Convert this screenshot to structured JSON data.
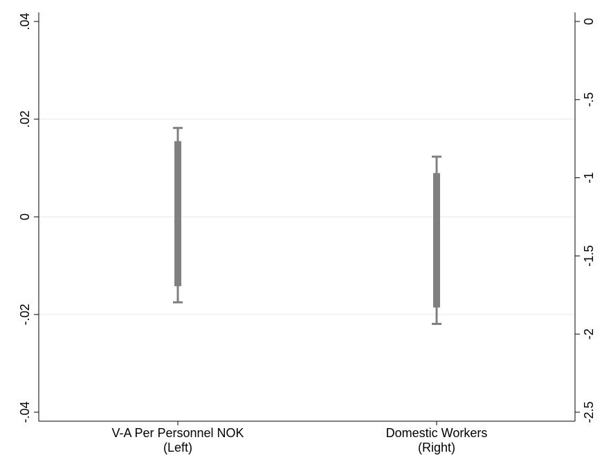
{
  "chart_data": {
    "type": "interval",
    "grid": true,
    "grid_color": "#eaf2f3",
    "series_color": "#808080",
    "axis_color": "#000000",
    "categories": [
      {
        "label_line1": "V-A Per Personnel NOK",
        "label_line2": "(Left)",
        "axis": "left"
      },
      {
        "label_line1": "Domestic Workers",
        "label_line2": "(Right)",
        "axis": "right"
      }
    ],
    "left_axis": {
      "ylim": [
        -0.042,
        0.041
      ],
      "ticks": [
        0.04,
        0.02,
        0,
        -0.02,
        -0.04
      ],
      "tick_labels": [
        ".04",
        ".02",
        "0",
        "-.02",
        "-.04"
      ]
    },
    "right_axis": {
      "ylim": [
        -2.6,
        0.05
      ],
      "ticks": [
        0,
        -0.5,
        -1,
        -1.5,
        -2,
        -2.5
      ],
      "tick_labels": [
        "0",
        "-.5",
        "-1",
        "-1.5",
        "-2",
        "-2.5"
      ]
    },
    "series": [
      {
        "category": 0,
        "axis": "left",
        "ci_low_outer": -0.0175,
        "ci_high_outer": 0.0182,
        "ci_low_inner": -0.0142,
        "ci_high_inner": 0.0155
      },
      {
        "category": 1,
        "axis": "right",
        "ci_low_outer": -1.935,
        "ci_high_outer": -0.865,
        "ci_low_inner": -1.83,
        "ci_high_inner": -0.97
      }
    ]
  }
}
